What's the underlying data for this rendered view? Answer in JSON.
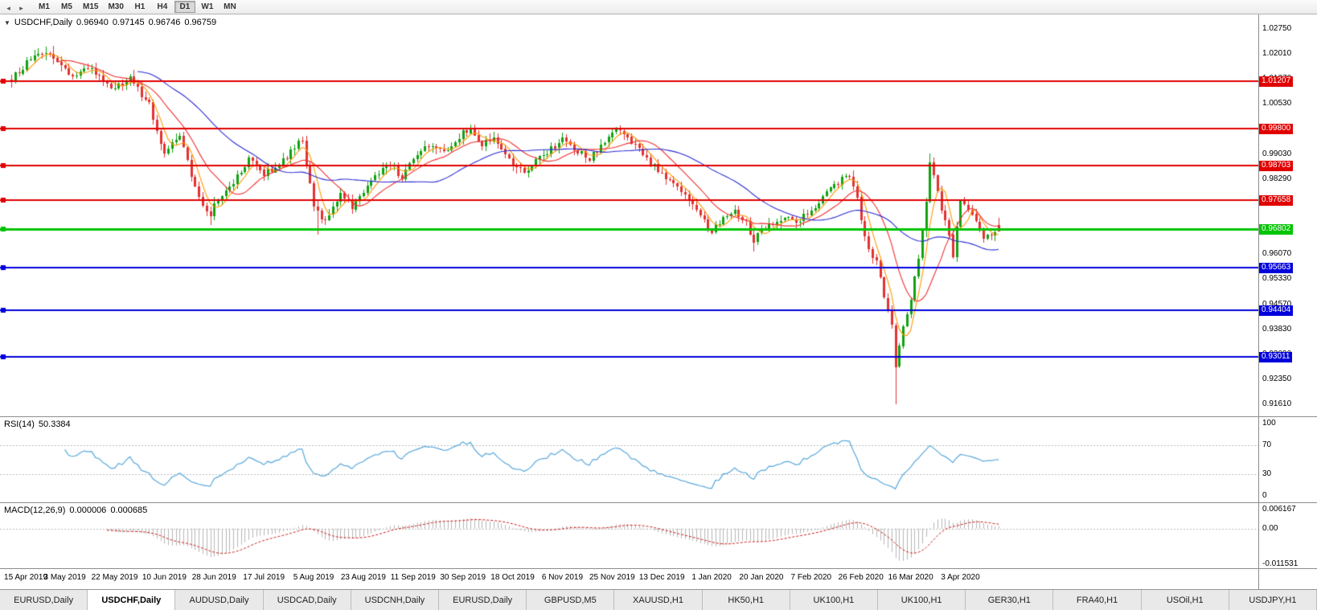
{
  "window": {
    "title": "USDCHF,Daily"
  },
  "toolbar": {
    "icons": [
      {
        "name": "scroll-left-icon",
        "glyph": "◂"
      },
      {
        "name": "scroll-right-icon",
        "glyph": "▸"
      }
    ],
    "timeframes": [
      "M1",
      "M5",
      "M15",
      "M30",
      "H1",
      "H4",
      "D1",
      "W1",
      "MN"
    ],
    "active_timeframe": "D1"
  },
  "price_panel": {
    "header": {
      "collapse_glyph": "▼",
      "symbol": "USDCHF,Daily",
      "open": "0.96940",
      "high": "0.97145",
      "low": "0.96746",
      "close": "0.96759"
    }
  },
  "rsi_panel": {
    "label": "RSI(14)",
    "value": "50.3384"
  },
  "macd_panel": {
    "label": "MACD(12,26,9)",
    "value_main": "0.000006",
    "value_signal": "0.000685"
  },
  "tabbar": {
    "tabs": [
      "EURUSD,Daily",
      "USDCHF,Daily",
      "AUDUSD,Daily",
      "USDCAD,Daily",
      "USDCNH,Daily",
      "EURUSD,Daily",
      "GBPUSD,M5",
      "XAUUSD,H1",
      "HK50,H1",
      "UK100,H1",
      "UK100,H1",
      "GER30,H1",
      "FRA40,H1",
      "USOil,H1",
      "USDJPY,H1"
    ],
    "active_index": 1
  },
  "chart_data": {
    "type": "candlestick",
    "symbol": "USDCHF",
    "timeframe": "Daily",
    "current_ohlc": {
      "open": 0.9694,
      "high": 0.97145,
      "low": 0.96746,
      "close": 0.96759
    },
    "ylim": [
      0.9161,
      1.0275
    ],
    "y_ticks": [
      "1.02750",
      "1.02010",
      "1.01270",
      "1.00530",
      "0.99790",
      "0.99030",
      "0.98290",
      "0.97550",
      "0.96810",
      "0.96070",
      "0.95330",
      "0.94570",
      "0.93830",
      "0.93090",
      "0.92350",
      "0.91610"
    ],
    "time_labels": [
      "15 Apr 2019",
      "3 May 2019",
      "22 May 2019",
      "10 Jun 2019",
      "28 Jun 2019",
      "17 Jul 2019",
      "5 Aug 2019",
      "23 Aug 2019",
      "11 Sep 2019",
      "30 Sep 2019",
      "18 Oct 2019",
      "6 Nov 2019",
      "25 Nov 2019",
      "13 Dec 2019",
      "1 Jan 2020",
      "20 Jan 2020",
      "7 Feb 2020",
      "26 Feb 2020",
      "16 Mar 2020",
      "3 Apr 2020"
    ],
    "candle_count": 259,
    "colors": {
      "up": "#11A211",
      "down": "#E23232"
    },
    "price_anchors": [
      [
        0,
        1.0125
      ],
      [
        5,
        1.0185
      ],
      [
        10,
        1.0205
      ],
      [
        13,
        1.0165
      ],
      [
        16,
        1.013
      ],
      [
        20,
        1.016
      ],
      [
        24,
        1.012
      ],
      [
        27,
        1.0095
      ],
      [
        31,
        1.013
      ],
      [
        36,
        1.005
      ],
      [
        40,
        0.9905
      ],
      [
        44,
        0.996
      ],
      [
        48,
        0.98
      ],
      [
        52,
        0.9718
      ],
      [
        53,
        0.9765
      ],
      [
        57,
        0.9805
      ],
      [
        62,
        0.9885
      ],
      [
        66,
        0.9845
      ],
      [
        70,
        0.987
      ],
      [
        74,
        0.9925
      ],
      [
        76,
        0.9945
      ],
      [
        79,
        0.974
      ],
      [
        82,
        0.9705
      ],
      [
        86,
        0.979
      ],
      [
        89,
        0.9745
      ],
      [
        92,
        0.979
      ],
      [
        96,
        0.985
      ],
      [
        99,
        0.9875
      ],
      [
        102,
        0.9835
      ],
      [
        105,
        0.989
      ],
      [
        109,
        0.993
      ],
      [
        113,
        0.9905
      ],
      [
        116,
        0.9945
      ],
      [
        118,
        0.9965
      ],
      [
        120,
        0.9975
      ],
      [
        123,
        0.993
      ],
      [
        126,
        0.9955
      ],
      [
        129,
        0.9905
      ],
      [
        131,
        0.9875
      ],
      [
        134,
        0.9845
      ],
      [
        138,
        0.989
      ],
      [
        141,
        0.992
      ],
      [
        144,
        0.995
      ],
      [
        147,
        0.9915
      ],
      [
        151,
        0.989
      ],
      [
        155,
        0.9935
      ],
      [
        157,
        0.9965
      ],
      [
        159,
        0.9975
      ],
      [
        163,
        0.993
      ],
      [
        166,
        0.989
      ],
      [
        170,
        0.9845
      ],
      [
        174,
        0.98
      ],
      [
        178,
        0.976
      ],
      [
        181,
        0.9705
      ],
      [
        183,
        0.9672
      ],
      [
        186,
        0.972
      ],
      [
        189,
        0.974
      ],
      [
        192,
        0.97
      ],
      [
        194,
        0.9645
      ],
      [
        196,
        0.968
      ],
      [
        199,
        0.9695
      ],
      [
        202,
        0.972
      ],
      [
        205,
        0.97
      ],
      [
        209,
        0.974
      ],
      [
        213,
        0.979
      ],
      [
        217,
        0.9832
      ],
      [
        219,
        0.9845
      ],
      [
        221,
        0.978
      ],
      [
        222,
        0.97
      ],
      [
        224,
        0.9628
      ],
      [
        226,
        0.958
      ],
      [
        228,
        0.948
      ],
      [
        230,
        0.939
      ],
      [
        231,
        0.927
      ],
      [
        233,
        0.9395
      ],
      [
        235,
        0.948
      ],
      [
        237,
        0.96
      ],
      [
        239,
        0.976
      ],
      [
        240,
        0.988
      ],
      [
        241,
        0.985
      ],
      [
        243,
        0.9745
      ],
      [
        245,
        0.9672
      ],
      [
        246,
        0.9605
      ],
      [
        248,
        0.977
      ],
      [
        250,
        0.9745
      ],
      [
        252,
        0.97
      ],
      [
        254,
        0.9645
      ],
      [
        256,
        0.967
      ],
      [
        258,
        0.9676
      ]
    ],
    "spikes": [
      {
        "i": 9,
        "high": 1.0222
      },
      {
        "i": 11,
        "high": 1.0226
      },
      {
        "i": 52,
        "low": 0.9693
      },
      {
        "i": 80,
        "low": 0.9663
      },
      {
        "i": 120,
        "high": 0.9992
      },
      {
        "i": 159,
        "high": 0.9988
      },
      {
        "i": 194,
        "low": 0.9613
      },
      {
        "i": 231,
        "low": 0.9161
      },
      {
        "i": 240,
        "high": 0.9905
      }
    ],
    "last_candle": {
      "open": 0.9694,
      "high": 0.97145,
      "low": 0.96746,
      "close": 0.96759
    },
    "moving_averages": [
      {
        "period": 5,
        "color": "#FF9900"
      },
      {
        "period": 13,
        "color": "#F03030"
      },
      {
        "period": 34,
        "color": "#2B2BD4"
      }
    ],
    "horizontal_lines": [
      {
        "price": 1.01207,
        "label": "1.01207",
        "color": "#E00000",
        "width": 2
      },
      {
        "price": 0.998,
        "label": "0.99800",
        "color": "#E00000",
        "width": 2
      },
      {
        "price": 0.98703,
        "label": "0.98703",
        "color": "#E00000",
        "width": 2
      },
      {
        "price": 0.97658,
        "label": "0.97658",
        "color": "#E00000",
        "width": 2
      },
      {
        "price": 0.96802,
        "label": "0.96802",
        "color": "#00C400",
        "width": 3
      },
      {
        "price": 0.95663,
        "label": "0.95663",
        "color": "#0000DC",
        "width": 2
      },
      {
        "price": 0.94404,
        "label": "0.94404",
        "color": "#0000DC",
        "width": 2
      },
      {
        "price": 0.93011,
        "label": "0.93011",
        "color": "#0000DC",
        "width": 2
      }
    ],
    "rsi": {
      "period": 14,
      "current": 50.3384,
      "color": "#58A8DC",
      "levels": [
        70,
        30
      ],
      "ticks": [
        "100",
        "70",
        "30",
        "0"
      ]
    },
    "macd": {
      "fast": 12,
      "slow": 26,
      "signal": 9,
      "main": 6e-06,
      "signal_value": 0.000685,
      "histogram_color": "#B6B6B6",
      "signal_color": "#CC2020",
      "ticks": [
        "0.006167",
        "0.00",
        "-0.011531"
      ]
    }
  }
}
